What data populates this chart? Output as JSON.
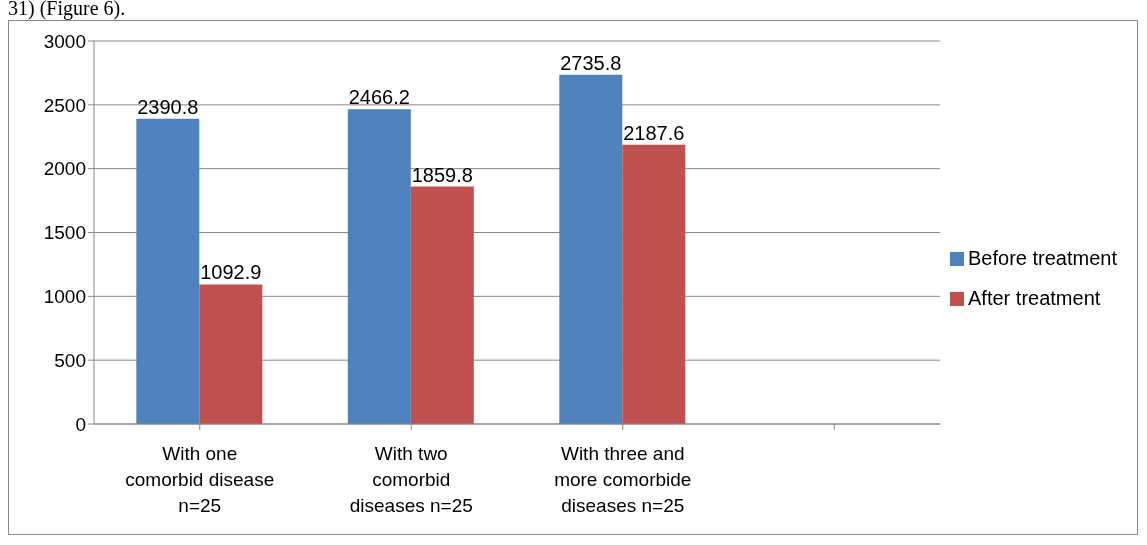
{
  "chart_data": {
    "type": "bar",
    "categories": [
      "With one\ncomorbid disease\nn=25",
      "With two\ncomorbid\ndiseases n=25",
      "With three and\nmore comorbide\ndiseases n=25",
      null
    ],
    "series": [
      {
        "name": "Before treatment",
        "color": "#4f81bd",
        "values": [
          2390.8,
          2466.2,
          2735.8,
          null
        ]
      },
      {
        "name": "After treatment",
        "color": "#c0504d",
        "values": [
          1092.9,
          1859.8,
          2187.6,
          null
        ]
      }
    ],
    "ylim": [
      0,
      3000
    ],
    "yticks": [
      0,
      500,
      1000,
      1500,
      2000,
      2500,
      3000
    ],
    "grid": "y",
    "legend": "right",
    "data_labels": true,
    "annotations": [
      "31) (Figure 6)."
    ]
  }
}
